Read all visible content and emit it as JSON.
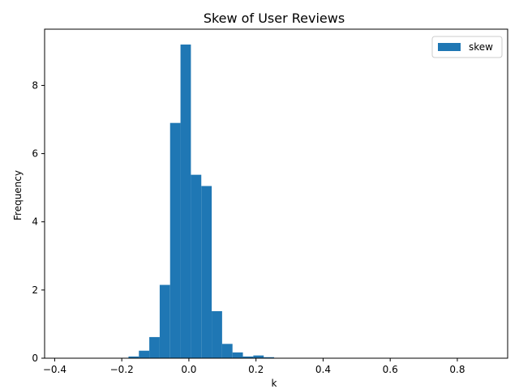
{
  "chart_data": {
    "type": "bar",
    "title": "Skew of User Reviews",
    "xlabel": "k",
    "ylabel": "Frequency",
    "xlim": [
      -0.43,
      0.95
    ],
    "ylim": [
      0,
      9.65
    ],
    "bar_color": "#1f77b4",
    "legend": {
      "position": "top-right",
      "entries": [
        "skew"
      ]
    },
    "x_ticks": [
      -0.4,
      -0.2,
      0.0,
      0.2,
      0.4,
      0.6,
      0.8
    ],
    "x_tick_labels": [
      "−0.4",
      "−0.2",
      "0.0",
      "0.2",
      "0.4",
      "0.6",
      "0.8"
    ],
    "y_ticks": [
      0,
      2,
      4,
      6,
      8
    ],
    "y_tick_labels": [
      "0",
      "2",
      "4",
      "6",
      "8"
    ],
    "bin_width": 0.031,
    "bins": [
      {
        "x0": -0.18,
        "value": 0.05
      },
      {
        "x0": -0.149,
        "value": 0.22
      },
      {
        "x0": -0.118,
        "value": 0.62
      },
      {
        "x0": -0.087,
        "value": 2.15
      },
      {
        "x0": -0.056,
        "value": 6.9
      },
      {
        "x0": -0.025,
        "value": 9.2
      },
      {
        "x0": 0.006,
        "value": 5.38
      },
      {
        "x0": 0.037,
        "value": 5.05
      },
      {
        "x0": 0.068,
        "value": 1.38
      },
      {
        "x0": 0.099,
        "value": 0.42
      },
      {
        "x0": 0.13,
        "value": 0.17
      },
      {
        "x0": 0.161,
        "value": 0.05
      },
      {
        "x0": 0.192,
        "value": 0.08
      },
      {
        "x0": 0.223,
        "value": 0.03
      },
      {
        "x0": 0.254,
        "value": 0.01
      },
      {
        "x0": 0.285,
        "value": 0.005
      },
      {
        "x0": 0.316,
        "value": 0.005
      }
    ]
  }
}
